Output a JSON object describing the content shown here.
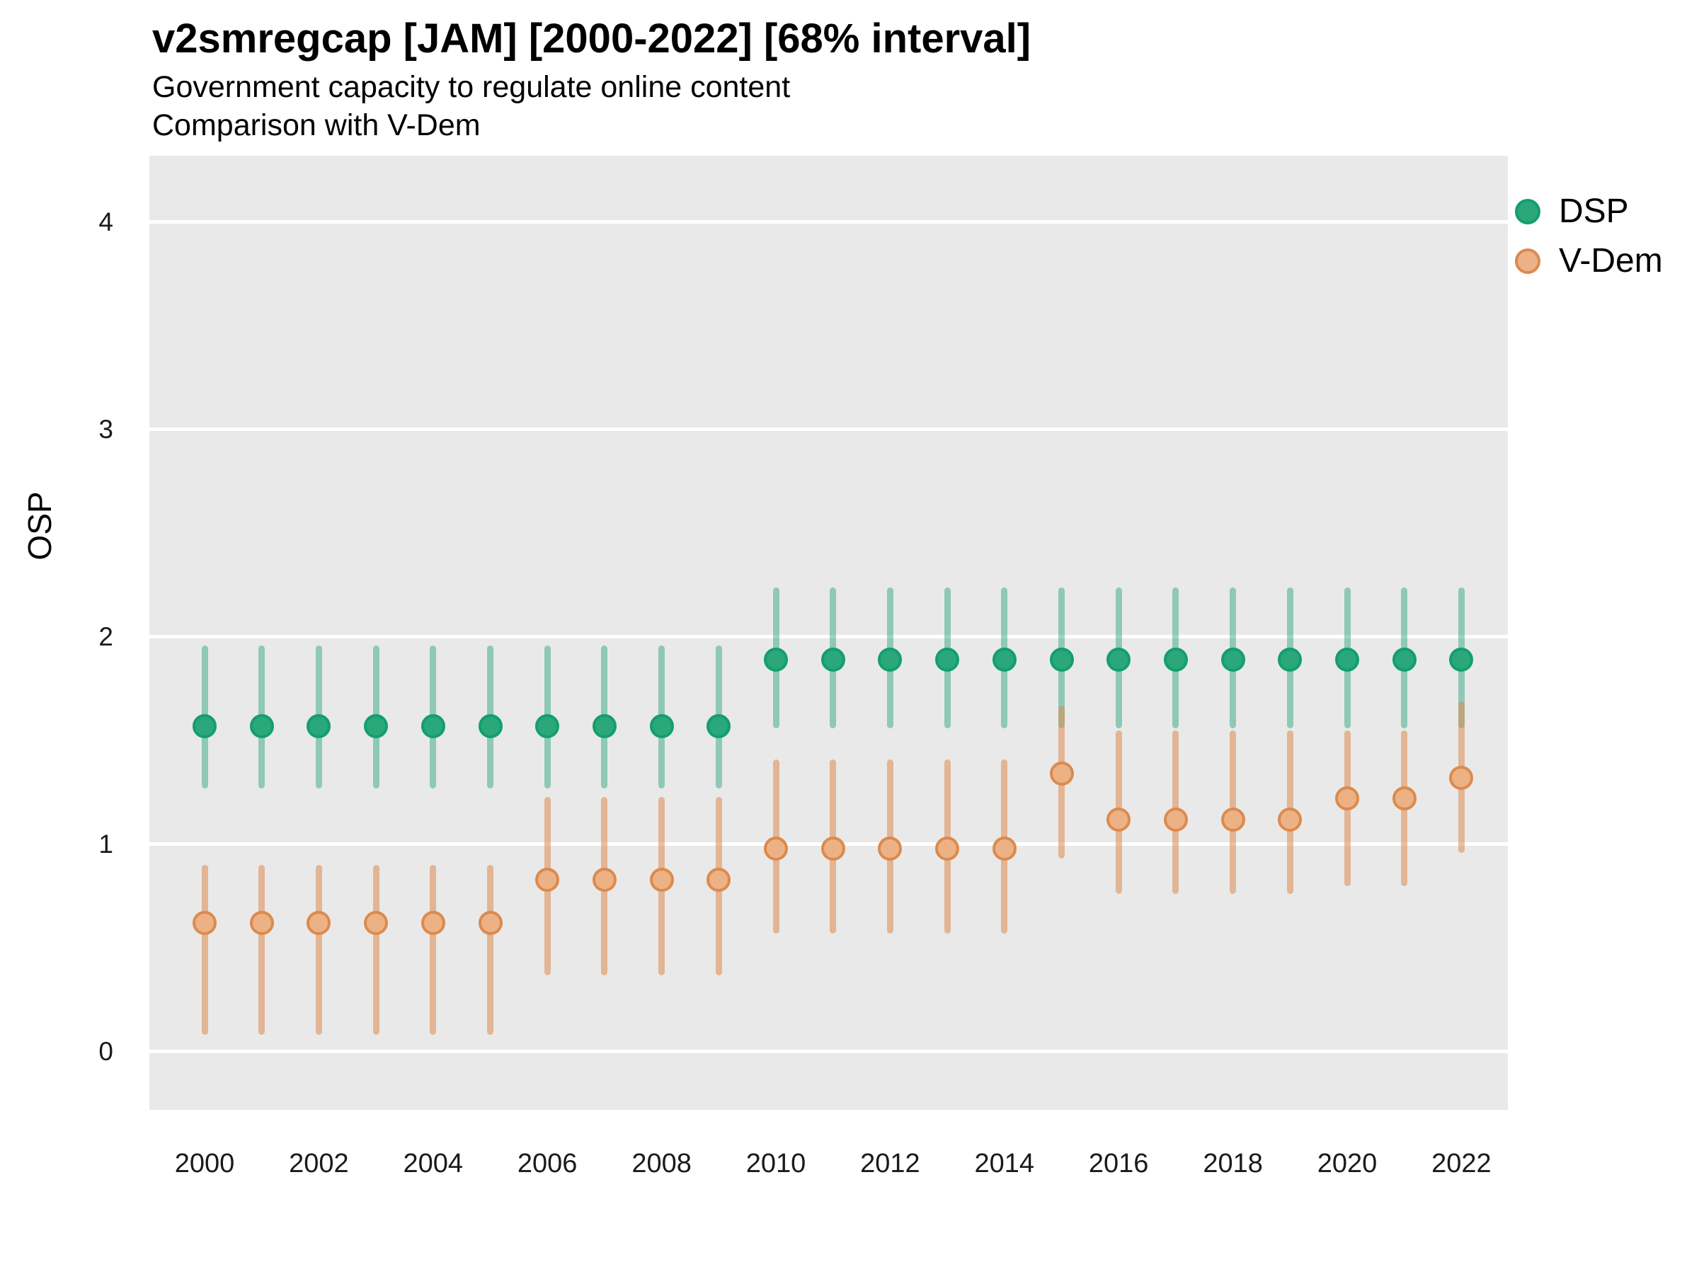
{
  "header": {
    "title": "v2smregcap [JAM] [2000-2022] [68% interval]",
    "subtitle_line1": "Government capacity to regulate online content",
    "subtitle_line2": "Comparison with V-Dem"
  },
  "colors": {
    "panel_bg": "#e9e9e9",
    "gridline": "#ffffff",
    "dsp_point": "#2aa87c",
    "dsp_ring": "#149e6e",
    "dsp_bar": "rgba(43,168,125,0.48)",
    "vdem_point": "#ecb286",
    "vdem_ring": "#dc8a4d",
    "vdem_bar": "rgba(221,138,78,0.55)",
    "text": "#000000"
  },
  "chart_data": {
    "type": "pointrange",
    "title": "v2smregcap [JAM] [2000-2022] [68% interval]",
    "subtitle": "Government capacity to regulate online content | Comparison with V-Dem",
    "xlabel": "",
    "ylabel": "OSP",
    "ylim": [
      0,
      4
    ],
    "ydisplay": [
      -0.28,
      4.32
    ],
    "yticks": [
      0,
      1,
      2,
      3,
      4
    ],
    "xticks": [
      2000,
      2002,
      2004,
      2006,
      2008,
      2010,
      2012,
      2014,
      2016,
      2018,
      2020,
      2022
    ],
    "grid": "major-horizontal-white",
    "legend_position": "right",
    "interval": "68%",
    "series": [
      {
        "name": "DSP",
        "color": "#2aa87c",
        "ring": "#149e6e",
        "bar": "rgba(43,168,125,0.48)",
        "points": [
          {
            "year": 2000,
            "est": 1.57,
            "lo": 1.27,
            "hi": 1.96
          },
          {
            "year": 2001,
            "est": 1.57,
            "lo": 1.27,
            "hi": 1.96
          },
          {
            "year": 2002,
            "est": 1.57,
            "lo": 1.27,
            "hi": 1.96
          },
          {
            "year": 2003,
            "est": 1.57,
            "lo": 1.27,
            "hi": 1.96
          },
          {
            "year": 2004,
            "est": 1.57,
            "lo": 1.27,
            "hi": 1.96
          },
          {
            "year": 2005,
            "est": 1.57,
            "lo": 1.27,
            "hi": 1.96
          },
          {
            "year": 2006,
            "est": 1.57,
            "lo": 1.27,
            "hi": 1.96
          },
          {
            "year": 2007,
            "est": 1.57,
            "lo": 1.27,
            "hi": 1.96
          },
          {
            "year": 2008,
            "est": 1.57,
            "lo": 1.27,
            "hi": 1.96
          },
          {
            "year": 2009,
            "est": 1.57,
            "lo": 1.27,
            "hi": 1.96
          },
          {
            "year": 2010,
            "est": 1.89,
            "lo": 1.56,
            "hi": 2.24
          },
          {
            "year": 2011,
            "est": 1.89,
            "lo": 1.56,
            "hi": 2.24
          },
          {
            "year": 2012,
            "est": 1.89,
            "lo": 1.56,
            "hi": 2.24
          },
          {
            "year": 2013,
            "est": 1.89,
            "lo": 1.56,
            "hi": 2.24
          },
          {
            "year": 2014,
            "est": 1.89,
            "lo": 1.56,
            "hi": 2.24
          },
          {
            "year": 2015,
            "est": 1.89,
            "lo": 1.56,
            "hi": 2.24
          },
          {
            "year": 2016,
            "est": 1.89,
            "lo": 1.56,
            "hi": 2.24
          },
          {
            "year": 2017,
            "est": 1.89,
            "lo": 1.56,
            "hi": 2.24
          },
          {
            "year": 2018,
            "est": 1.89,
            "lo": 1.56,
            "hi": 2.24
          },
          {
            "year": 2019,
            "est": 1.89,
            "lo": 1.56,
            "hi": 2.24
          },
          {
            "year": 2020,
            "est": 1.89,
            "lo": 1.56,
            "hi": 2.24
          },
          {
            "year": 2021,
            "est": 1.89,
            "lo": 1.56,
            "hi": 2.24
          },
          {
            "year": 2022,
            "est": 1.89,
            "lo": 1.56,
            "hi": 2.24
          }
        ]
      },
      {
        "name": "V-Dem",
        "color": "#ecb286",
        "ring": "#dc8a4d",
        "bar": "rgba(221,138,78,0.55)",
        "points": [
          {
            "year": 2000,
            "est": 0.62,
            "lo": 0.08,
            "hi": 0.9
          },
          {
            "year": 2001,
            "est": 0.62,
            "lo": 0.08,
            "hi": 0.9
          },
          {
            "year": 2002,
            "est": 0.62,
            "lo": 0.08,
            "hi": 0.9
          },
          {
            "year": 2003,
            "est": 0.62,
            "lo": 0.08,
            "hi": 0.9
          },
          {
            "year": 2004,
            "est": 0.62,
            "lo": 0.08,
            "hi": 0.9
          },
          {
            "year": 2005,
            "est": 0.62,
            "lo": 0.08,
            "hi": 0.9
          },
          {
            "year": 2006,
            "est": 0.83,
            "lo": 0.37,
            "hi": 1.23
          },
          {
            "year": 2007,
            "est": 0.83,
            "lo": 0.37,
            "hi": 1.23
          },
          {
            "year": 2008,
            "est": 0.83,
            "lo": 0.37,
            "hi": 1.23
          },
          {
            "year": 2009,
            "est": 0.83,
            "lo": 0.37,
            "hi": 1.23
          },
          {
            "year": 2010,
            "est": 0.98,
            "lo": 0.57,
            "hi": 1.41
          },
          {
            "year": 2011,
            "est": 0.98,
            "lo": 0.57,
            "hi": 1.41
          },
          {
            "year": 2012,
            "est": 0.98,
            "lo": 0.57,
            "hi": 1.41
          },
          {
            "year": 2013,
            "est": 0.98,
            "lo": 0.57,
            "hi": 1.41
          },
          {
            "year": 2014,
            "est": 0.98,
            "lo": 0.57,
            "hi": 1.41
          },
          {
            "year": 2015,
            "est": 1.34,
            "lo": 0.93,
            "hi": 1.67
          },
          {
            "year": 2016,
            "est": 1.12,
            "lo": 0.76,
            "hi": 1.55
          },
          {
            "year": 2017,
            "est": 1.12,
            "lo": 0.76,
            "hi": 1.55
          },
          {
            "year": 2018,
            "est": 1.12,
            "lo": 0.76,
            "hi": 1.55
          },
          {
            "year": 2019,
            "est": 1.12,
            "lo": 0.76,
            "hi": 1.55
          },
          {
            "year": 2020,
            "est": 1.22,
            "lo": 0.8,
            "hi": 1.55
          },
          {
            "year": 2021,
            "est": 1.22,
            "lo": 0.8,
            "hi": 1.55
          },
          {
            "year": 2022,
            "est": 1.32,
            "lo": 0.96,
            "hi": 1.69
          }
        ]
      }
    ]
  }
}
